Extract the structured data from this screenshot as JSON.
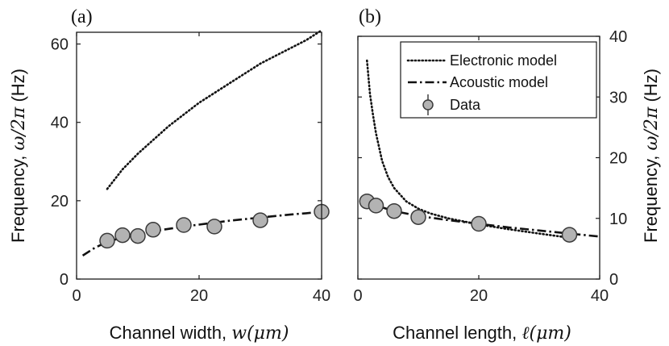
{
  "chart_data": [
    {
      "panel_label": "(a)",
      "type": "line",
      "xlabel": "Channel width, ",
      "xlabel_math": "w(μm)",
      "ylabel": "Frequency, ",
      "ylabel_math": "ω/2π",
      "ylabel_unit": " (Hz)",
      "xlim": [
        0,
        40
      ],
      "ylim": [
        0,
        63
      ],
      "xticks": [
        0,
        20,
        40
      ],
      "yticks": [
        0,
        20,
        40,
        60
      ],
      "yaxis_side": "left",
      "series": [
        {
          "name": "Electronic model",
          "style": "dotted",
          "x": [
            5,
            7.5,
            10,
            12.5,
            15,
            17.5,
            20,
            22.5,
            25,
            27.5,
            30,
            32.5,
            35,
            37.5,
            40
          ],
          "y": [
            23,
            28,
            32,
            35.5,
            39,
            42,
            45,
            47.5,
            50,
            52.5,
            55,
            57,
            59,
            61,
            63.5
          ]
        },
        {
          "name": "Acoustic model",
          "style": "dashdot",
          "x": [
            1,
            3,
            5,
            7.5,
            10,
            12.5,
            15,
            17.5,
            20,
            22.5,
            25,
            27.5,
            30,
            32.5,
            35,
            37.5,
            40
          ],
          "y": [
            6,
            8,
            9.5,
            10.6,
            11.5,
            12.2,
            12.8,
            13.4,
            13.9,
            14.4,
            14.9,
            15.3,
            15.7,
            16.1,
            16.5,
            16.8,
            17.2
          ]
        },
        {
          "name": "Data",
          "style": "markers",
          "x": [
            5,
            7.5,
            10,
            12.5,
            17.5,
            22.5,
            30,
            40
          ],
          "y": [
            9.8,
            11.2,
            11,
            12.6,
            13.8,
            13.4,
            15,
            17.2
          ]
        }
      ]
    },
    {
      "panel_label": "(b)",
      "type": "line",
      "xlabel": "Channel length, ",
      "xlabel_math": "ℓ(μm)",
      "ylabel": "Frequency, ",
      "ylabel_math": "ω/2π",
      "ylabel_unit": " (Hz)",
      "xlim": [
        0,
        40
      ],
      "ylim": [
        0,
        40
      ],
      "xticks": [
        0,
        20,
        40
      ],
      "yticks": [
        0,
        10,
        20,
        30,
        40
      ],
      "yaxis_side": "right",
      "legend_position": "top-right",
      "series": [
        {
          "name": "Electronic model",
          "style": "dotted",
          "x": [
            1.5,
            2,
            2.5,
            3,
            4,
            5,
            6,
            8,
            10,
            12,
            15,
            20,
            25,
            30,
            35
          ],
          "y": [
            36,
            30.5,
            27,
            24,
            19.5,
            16.8,
            15,
            12.8,
            11.6,
            10.8,
            10,
            9,
            8.2,
            7.5,
            6.8
          ]
        },
        {
          "name": "Acoustic model",
          "style": "dashdot",
          "x": [
            1.5,
            3,
            6,
            10,
            15,
            20,
            25,
            30,
            35,
            40
          ],
          "y": [
            12.8,
            12.1,
            11.2,
            10.4,
            9.7,
            9.1,
            8.5,
            8.0,
            7.5,
            7.0
          ]
        },
        {
          "name": "Data",
          "style": "markers",
          "x": [
            1.5,
            3,
            6,
            10,
            20,
            35
          ],
          "y": [
            12.8,
            12.1,
            11.2,
            10.2,
            9.1,
            7.3
          ]
        }
      ]
    }
  ],
  "legend": {
    "items": [
      {
        "label": "Electronic model",
        "style": "dotted"
      },
      {
        "label": "Acoustic model",
        "style": "dashdot"
      },
      {
        "label": "Data",
        "style": "markers"
      }
    ]
  }
}
